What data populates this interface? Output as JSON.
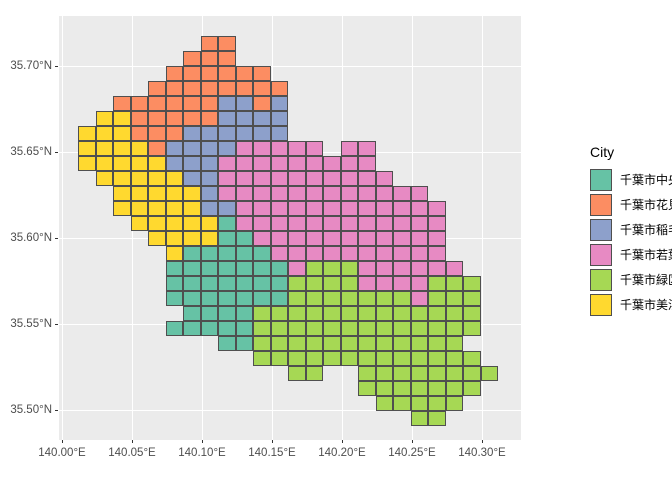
{
  "chart_data": {
    "type": "heatmap",
    "title": "",
    "xlabel": "",
    "ylabel": "",
    "legend_title": "City",
    "x_ticks": [
      "140.00°E",
      "140.05°E",
      "140.10°E",
      "140.15°E",
      "140.20°E",
      "140.25°E",
      "140.30°E"
    ],
    "y_ticks": [
      "35.70°N",
      "35.65°N",
      "35.60°N",
      "35.55°N",
      "35.50°N"
    ],
    "x_range": [
      140.0,
      140.33
    ],
    "y_range": [
      35.485,
      35.72
    ],
    "grid_on": true,
    "legend_position": "right",
    "series": [
      {
        "key": "T",
        "name": "千葉市中央区",
        "color": "#66C2A5"
      },
      {
        "key": "O",
        "name": "千葉市花見川区",
        "color": "#FC8D62"
      },
      {
        "key": "B",
        "name": "千葉市稲毛区",
        "color": "#8DA0CB"
      },
      {
        "key": "P",
        "name": "千葉市若葉区",
        "color": "#E78AC3"
      },
      {
        "key": "G",
        "name": "千葉市緑区",
        "color": "#A6D854"
      },
      {
        "key": "Y",
        "name": "千葉市美浜区",
        "color": "#FFD92F"
      }
    ],
    "grid": {
      "cols": 24,
      "rows": 26,
      "cell_deg_width": 0.0125,
      "cell_deg_height": 0.00875,
      "origin_lon": 140.0114,
      "origin_lat": 35.7174,
      "row_runs": [
        {
          "r": 0,
          "runs": [
            [
              7,
              8,
              "O"
            ]
          ]
        },
        {
          "r": 1,
          "runs": [
            [
              6,
              8,
              "O"
            ]
          ]
        },
        {
          "r": 2,
          "runs": [
            [
              5,
              10,
              "O"
            ]
          ]
        },
        {
          "r": 3,
          "runs": [
            [
              4,
              11,
              "O"
            ]
          ]
        },
        {
          "r": 4,
          "runs": [
            [
              2,
              7,
              "O"
            ],
            [
              8,
              9,
              "B"
            ],
            [
              10,
              10,
              "O"
            ],
            [
              11,
              11,
              "B"
            ]
          ]
        },
        {
          "r": 5,
          "runs": [
            [
              1,
              2,
              "Y"
            ],
            [
              3,
              7,
              "O"
            ],
            [
              8,
              11,
              "B"
            ]
          ]
        },
        {
          "r": 6,
          "runs": [
            [
              0,
              2,
              "Y"
            ],
            [
              3,
              5,
              "O"
            ],
            [
              6,
              11,
              "B"
            ]
          ]
        },
        {
          "r": 7,
          "runs": [
            [
              0,
              3,
              "Y"
            ],
            [
              4,
              4,
              "O"
            ],
            [
              5,
              8,
              "B"
            ],
            [
              9,
              13,
              "P"
            ],
            [
              15,
              16,
              "P"
            ]
          ]
        },
        {
          "r": 8,
          "runs": [
            [
              0,
              4,
              "Y"
            ],
            [
              5,
              7,
              "B"
            ],
            [
              8,
              16,
              "P"
            ]
          ]
        },
        {
          "r": 9,
          "runs": [
            [
              1,
              5,
              "Y"
            ],
            [
              6,
              7,
              "B"
            ],
            [
              8,
              17,
              "P"
            ]
          ]
        },
        {
          "r": 10,
          "runs": [
            [
              2,
              6,
              "Y"
            ],
            [
              7,
              7,
              "B"
            ],
            [
              8,
              19,
              "P"
            ]
          ]
        },
        {
          "r": 11,
          "runs": [
            [
              2,
              6,
              "Y"
            ],
            [
              7,
              8,
              "B"
            ],
            [
              9,
              20,
              "P"
            ]
          ]
        },
        {
          "r": 12,
          "runs": [
            [
              3,
              7,
              "Y"
            ],
            [
              8,
              8,
              "T"
            ],
            [
              9,
              20,
              "P"
            ]
          ]
        },
        {
          "r": 13,
          "runs": [
            [
              4,
              7,
              "Y"
            ],
            [
              8,
              9,
              "T"
            ],
            [
              10,
              20,
              "P"
            ]
          ]
        },
        {
          "r": 14,
          "runs": [
            [
              5,
              5,
              "Y"
            ],
            [
              6,
              10,
              "T"
            ],
            [
              11,
              20,
              "P"
            ]
          ]
        },
        {
          "r": 15,
          "runs": [
            [
              5,
              11,
              "T"
            ],
            [
              12,
              12,
              "P"
            ],
            [
              13,
              15,
              "G"
            ],
            [
              16,
              21,
              "P"
            ]
          ]
        },
        {
          "r": 16,
          "runs": [
            [
              5,
              11,
              "T"
            ],
            [
              12,
              15,
              "G"
            ],
            [
              16,
              19,
              "P"
            ],
            [
              20,
              22,
              "G"
            ]
          ]
        },
        {
          "r": 17,
          "runs": [
            [
              5,
              11,
              "T"
            ],
            [
              12,
              18,
              "G"
            ],
            [
              19,
              19,
              "P"
            ],
            [
              20,
              22,
              "G"
            ]
          ]
        },
        {
          "r": 18,
          "runs": [
            [
              6,
              9,
              "T"
            ],
            [
              10,
              22,
              "G"
            ]
          ]
        },
        {
          "r": 19,
          "runs": [
            [
              5,
              9,
              "T"
            ],
            [
              10,
              22,
              "G"
            ]
          ]
        },
        {
          "r": 20,
          "runs": [
            [
              8,
              9,
              "T"
            ],
            [
              10,
              21,
              "G"
            ]
          ]
        },
        {
          "r": 21,
          "runs": [
            [
              10,
              22,
              "G"
            ]
          ]
        },
        {
          "r": 22,
          "runs": [
            [
              12,
              13,
              "G"
            ],
            [
              16,
              23,
              "G"
            ]
          ]
        },
        {
          "r": 23,
          "runs": [
            [
              16,
              22,
              "G"
            ]
          ]
        },
        {
          "r": 24,
          "runs": [
            [
              17,
              21,
              "G"
            ]
          ]
        },
        {
          "r": 25,
          "runs": [
            [
              19,
              20,
              "G"
            ]
          ]
        }
      ]
    },
    "colors": {
      "panel_background": "#EBEBEB",
      "gridline": "#FFFFFF",
      "cell_border": "#4F4F4F",
      "tick_text": "#4D4D4D",
      "legend_text": "#000000"
    }
  }
}
